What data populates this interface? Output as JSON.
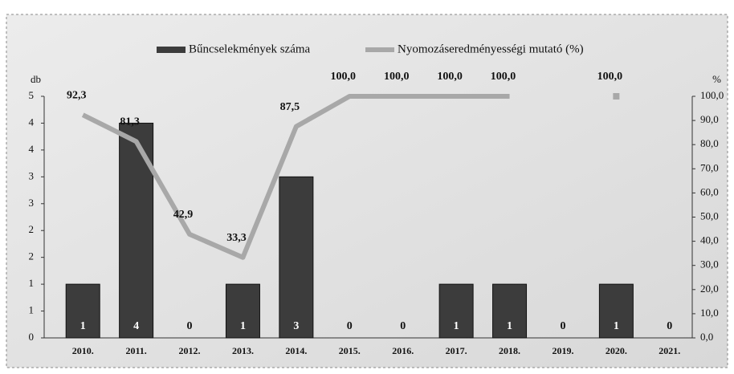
{
  "chart_data": {
    "type": "bar_line",
    "y_label": "db",
    "y2_label": "%",
    "categories": [
      "2010.",
      "2011.",
      "2012.",
      "2013.",
      "2014.",
      "2015.",
      "2016.",
      "2017.",
      "2018.",
      "2019.",
      "2020.",
      "2021."
    ],
    "series": [
      {
        "name": "Bűncselekmények száma",
        "type": "bar",
        "color": "#3c3c3c",
        "values": [
          1,
          4,
          0,
          1,
          3,
          0,
          0,
          1,
          1,
          0,
          1,
          0
        ]
      },
      {
        "name": "Nyomozáseredményességi mutató (%)",
        "type": "line",
        "axis": "y2",
        "color": "#a8a8a8",
        "values": [
          92.3,
          81.3,
          42.9,
          33.3,
          87.5,
          100,
          100,
          100,
          100,
          null,
          100,
          null
        ],
        "value_labels": [
          "92,3",
          "81,3",
          "42,9",
          "33,3",
          "87,5",
          "100,0",
          "100,0",
          "100,0",
          "100,0",
          null,
          "100,0",
          null
        ]
      }
    ],
    "ylim": [
      0,
      4.5
    ],
    "yticks": [
      0,
      {
        "value": 0.5,
        "label": "1"
      },
      1,
      {
        "value": 1.5,
        "label": "2"
      },
      2,
      {
        "value": 2.5,
        "label": "3"
      },
      3,
      {
        "value": 3.5,
        "label": "4"
      },
      4,
      {
        "value": 4.5,
        "label": "5"
      }
    ],
    "y2lim": [
      0,
      100
    ],
    "y2ticks": [
      {
        "value": 0,
        "label": "0,0"
      },
      {
        "value": 10,
        "label": "10,0"
      },
      {
        "value": 20,
        "label": "20,0"
      },
      {
        "value": 30,
        "label": "30,0"
      },
      {
        "value": 40,
        "label": "40,0"
      },
      {
        "value": 50,
        "label": "50,0"
      },
      {
        "value": 60,
        "label": "60,0"
      },
      {
        "value": 70,
        "label": "70,0"
      },
      {
        "value": 80,
        "label": "80,0"
      },
      {
        "value": 90,
        "label": "90,0"
      },
      {
        "value": 100,
        "label": "100,0"
      }
    ]
  }
}
